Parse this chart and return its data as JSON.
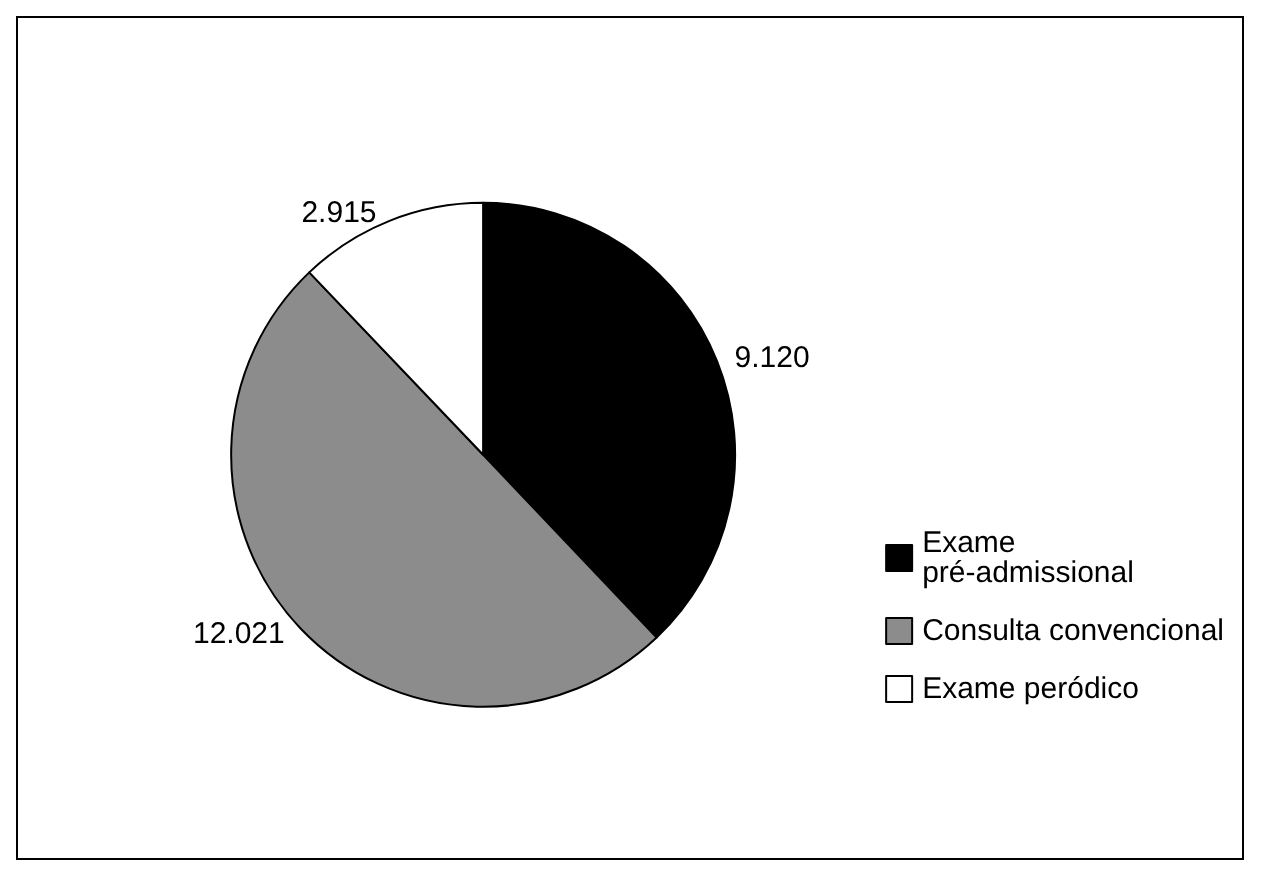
{
  "chart_data": {
    "type": "pie",
    "categories": [
      "Exame pré-admissional",
      "Consulta convencional",
      "Exame peródico"
    ],
    "values": [
      9120,
      12021,
      2915
    ],
    "value_labels": [
      "9.120",
      "12.021",
      "2.915"
    ],
    "colors": [
      "#000000",
      "#8c8c8c",
      "#ffffff"
    ],
    "legend": "right"
  }
}
